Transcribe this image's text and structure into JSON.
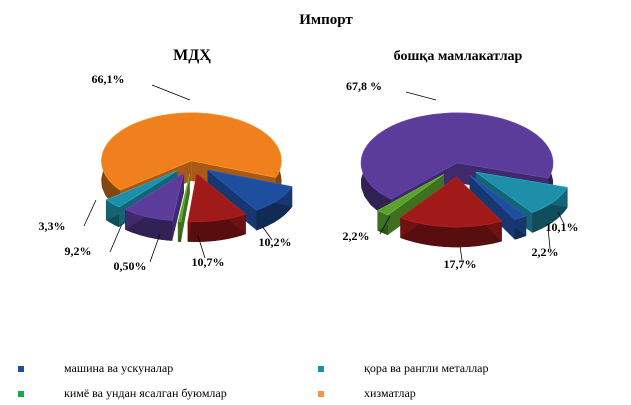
{
  "chart_data": {
    "type": "pie",
    "title": "Импорт",
    "legend_position": "bottom",
    "series_names": [
      "машина ва ускуналар",
      "қора ва рангли металлар",
      "кимё ва ундан ясалган буюмлар",
      "хизматлар"
    ],
    "colors": {
      "blue": "#1f4e9e",
      "teal": "#1f8ea8",
      "green": "#5aa02c",
      "orange": "#f07f1e",
      "purple": "#5b3c9a",
      "red": "#a01a1a"
    },
    "charts": [
      {
        "title": "МДҲ",
        "slices": [
          {
            "value": 66.1,
            "label": "66,1%",
            "color": "#f07f1e"
          },
          {
            "value": 10.2,
            "label": "10,2%",
            "color": "#1f4e9e"
          },
          {
            "value": 10.7,
            "label": "10,7%",
            "color": "#a01a1a"
          },
          {
            "value": 0.5,
            "label": "0,50%",
            "color": "#5aa02c"
          },
          {
            "value": 9.2,
            "label": "9,2%",
            "color": "#5b3c9a"
          },
          {
            "value": 3.3,
            "label": "3,3%",
            "color": "#1f8ea8"
          }
        ]
      },
      {
        "title": "бошқа мамлакатлар",
        "slices": [
          {
            "value": 67.8,
            "label": "67,8 %",
            "color": "#5b3c9a"
          },
          {
            "value": 10.1,
            "label": "10,1%",
            "color": "#1f8ea8"
          },
          {
            "value": 2.2,
            "label": "2,2%",
            "color": "#1f4e9e"
          },
          {
            "value": 17.7,
            "label": "17,7%",
            "color": "#a01a1a"
          },
          {
            "value": 2.2,
            "label": "2,2%",
            "color": "#5aa02c"
          }
        ]
      }
    ]
  },
  "legend": [
    {
      "label": "машина ва ускуналар",
      "color": "#1f4e9e"
    },
    {
      "label": "қора ва рангли металлар",
      "color": "#1f8ea8"
    },
    {
      "label": "кимё ва ундан ясалган буюмлар",
      "color": "#1aa64a"
    },
    {
      "label": "хизматлар",
      "color": "#f79646"
    }
  ]
}
